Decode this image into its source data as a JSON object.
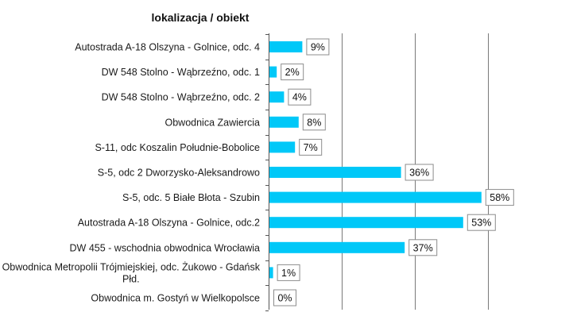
{
  "chart_data": {
    "type": "bar",
    "orientation": "horizontal",
    "title": "lokalizacja / obiekt",
    "categories": [
      "Autostrada A-18 Olszyna - Golnice, odc. 4",
      "DW 548 Stolno - Wąbrzeźno, odc. 1",
      "DW 548 Stolno - Wąbrzeźno, odc. 2",
      "Obwodnica Zawiercia",
      "S-11, odc Koszalin Południe-Bobolice",
      "S-5, odc 2 Dworzysko-Aleksandrowo",
      "S-5, odc. 5 Białe Błota - Szubin",
      "Autostrada A-18 Olszyna - Golnice, odc.2",
      "DW 455 - wschodnia obwodnica Wrocławia",
      "Obwodnica Metropolii Trójmiejskiej, odc. Żukowo - Gdańsk Płd.",
      "Obwodnica m. Gostyń w Wielkopolsce"
    ],
    "values": [
      9,
      2,
      4,
      8,
      7,
      36,
      58,
      53,
      37,
      1,
      0
    ],
    "data_labels": [
      "9%",
      "2%",
      "4%",
      "8%",
      "7%",
      "36%",
      "58%",
      "53%",
      "37%",
      "1%",
      "0%"
    ],
    "xlim": [
      0,
      60
    ],
    "grid": true,
    "legend": "none",
    "colors": {
      "bar": "#00c8f8",
      "grid": "#7a7a7a",
      "label_border": "#8c8c8c"
    }
  }
}
